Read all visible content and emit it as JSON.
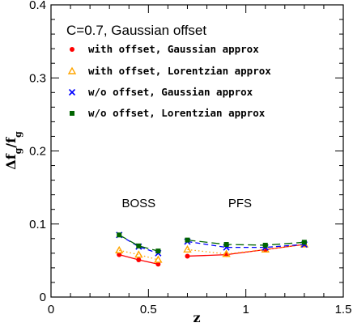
{
  "chart_data": {
    "type": "line",
    "title": "C=0.7, Gaussian offset",
    "xlabel": "z",
    "ylabel": "Δf_g/f_g",
    "xlim": [
      0,
      1.5
    ],
    "ylim": [
      0,
      0.4
    ],
    "xticks": [
      "0",
      "0.5",
      "1",
      "1.5"
    ],
    "yticks": [
      "0",
      "0.1",
      "0.2",
      "0.3",
      "0.4"
    ],
    "legend_position": "top-left",
    "annotations": [
      {
        "text": "BOSS",
        "x": 0.45,
        "y": 0.123
      },
      {
        "text": "PFS",
        "x": 0.97,
        "y": 0.123
      }
    ],
    "series": [
      {
        "name": "with offset, Gaussian approx",
        "color": "#ff0000",
        "marker": "circle",
        "line": "solid",
        "segments": [
          {
            "x": [
              0.35,
              0.45,
              0.55
            ],
            "y": [
              0.058,
              0.051,
              0.045
            ]
          },
          {
            "x": [
              0.7,
              0.9,
              1.1,
              1.3
            ],
            "y": [
              0.056,
              0.058,
              0.065,
              0.072
            ]
          }
        ]
      },
      {
        "name": "with offset, Lorentzian approx",
        "color": "#ffa500",
        "marker": "triangle",
        "line": "dotted",
        "segments": [
          {
            "x": [
              0.35,
              0.45,
              0.55
            ],
            "y": [
              0.064,
              0.058,
              0.051
            ]
          },
          {
            "x": [
              0.7,
              0.9,
              1.1,
              1.3
            ],
            "y": [
              0.065,
              0.059,
              0.065,
              0.072
            ]
          }
        ]
      },
      {
        "name": "w/o offset, Gaussian approx",
        "color": "#0000ff",
        "marker": "x",
        "line": "dashed",
        "segments": [
          {
            "x": [
              0.35,
              0.45,
              0.55
            ],
            "y": [
              0.085,
              0.069,
              0.06
            ]
          },
          {
            "x": [
              0.7,
              0.9,
              1.1,
              1.3
            ],
            "y": [
              0.076,
              0.068,
              0.068,
              0.072
            ]
          }
        ]
      },
      {
        "name": "w/o offset, Lorentzian approx",
        "color": "#006400",
        "marker": "square",
        "line": "longdash",
        "segments": [
          {
            "x": [
              0.35,
              0.45,
              0.55
            ],
            "y": [
              0.085,
              0.07,
              0.063
            ]
          },
          {
            "x": [
              0.7,
              0.9,
              1.1,
              1.3
            ],
            "y": [
              0.078,
              0.072,
              0.071,
              0.075
            ]
          }
        ]
      }
    ]
  }
}
